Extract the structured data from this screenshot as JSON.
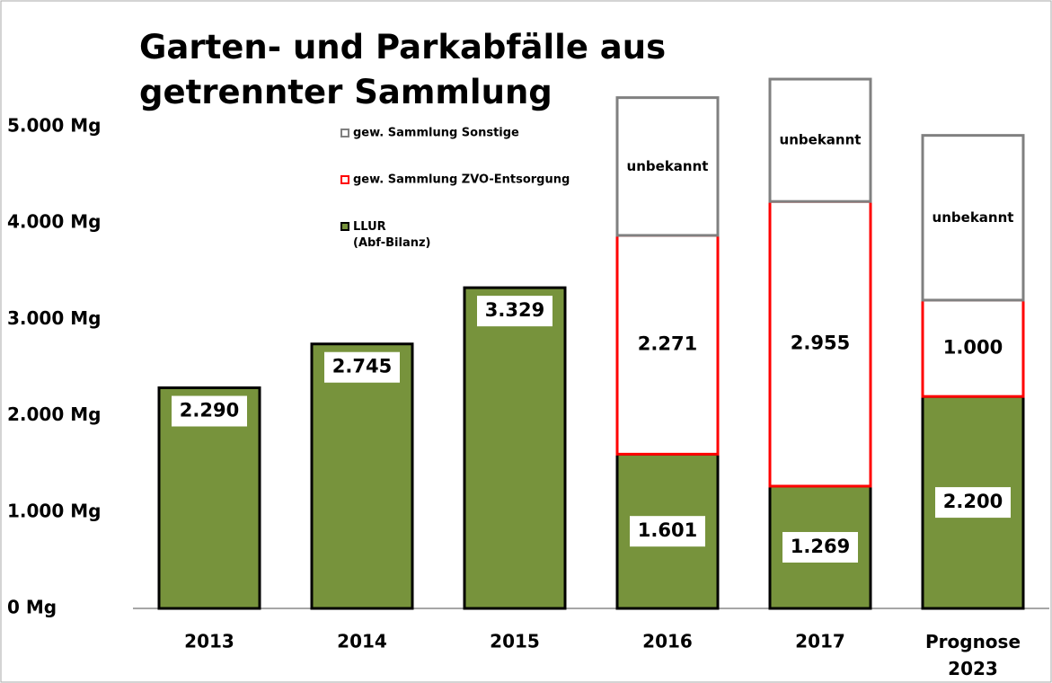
{
  "chart_data": {
    "type": "stacked_bar",
    "title": "Garten- und Parkabfälle aus getrennter Sammlung",
    "categories": [
      "2013",
      "2014",
      "2015",
      "2016",
      "2017",
      "Prognose 2023"
    ],
    "series": [
      {
        "name": "LLUR (Abf-Bilanz)",
        "color": "#77933c",
        "edge": "#000000",
        "values": [
          2290,
          2745,
          3329,
          1601,
          1269,
          2200
        ],
        "value_labels": [
          "2.290",
          "2.745",
          "3.329",
          "1.601",
          "1.269",
          "2.200"
        ]
      },
      {
        "name": "gew. Sammlung ZVO-Entsorgung",
        "color": "#ffffff",
        "edge": "#ff0000",
        "values": [
          null,
          null,
          null,
          2271,
          2955,
          1000
        ],
        "value_labels": [
          null,
          null,
          null,
          "2.271",
          "2.955",
          "1.000"
        ]
      },
      {
        "name": "gew. Sammlung Sonstige",
        "color": "#ffffff",
        "edge": "#808080",
        "values": [
          null,
          null,
          null,
          1430,
          1270,
          1710
        ],
        "value_labels": [
          null,
          null,
          null,
          "unbekannt",
          "unbekannt",
          "unbekannt"
        ]
      }
    ],
    "ylim": [
      0,
      5000
    ],
    "yticks": [
      {
        "value": 0,
        "label": "0 Mg"
      },
      {
        "value": 1000,
        "label": "1.000 Mg"
      },
      {
        "value": 2000,
        "label": "2.000 Mg"
      },
      {
        "value": 3000,
        "label": "3.000 Mg"
      },
      {
        "value": 4000,
        "label": "4.000 Mg"
      },
      {
        "value": 5000,
        "label": "5.000 Mg"
      }
    ],
    "grid": false
  }
}
